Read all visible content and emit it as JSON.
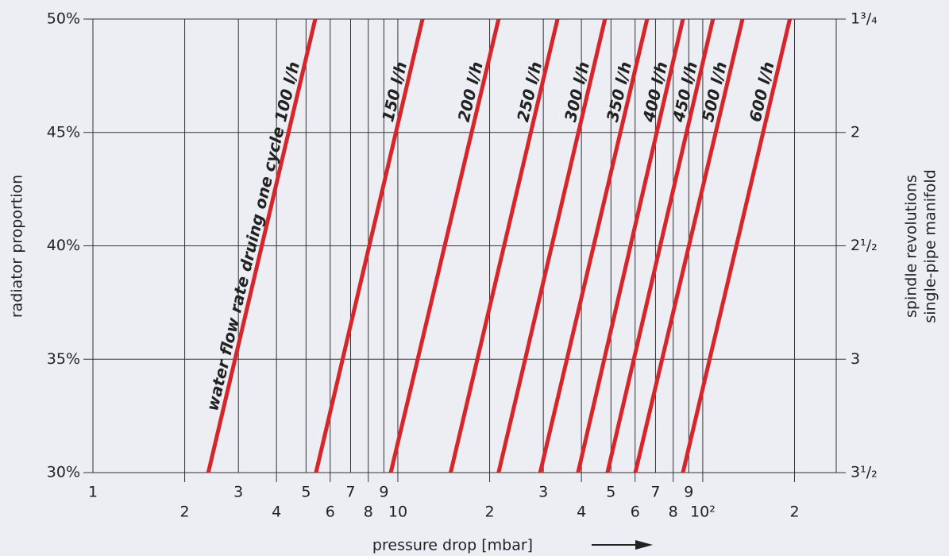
{
  "chart_data": {
    "type": "line",
    "xlabel": "pressure drop [mbar]",
    "ylabel": "radiator proportion",
    "y2label": [
      "spindle revolutions",
      "single-pipe manifold"
    ],
    "xscale": "log",
    "grid": true,
    "xlim": [
      1,
      274
    ],
    "ylim": [
      30,
      50
    ],
    "xticks": [
      1,
      2,
      3,
      4,
      5,
      6,
      7,
      8,
      9,
      10,
      {
        "value": 20,
        "label": "2"
      },
      {
        "value": 30,
        "label": "3"
      },
      {
        "value": 40,
        "label": "4"
      },
      {
        "value": 50,
        "label": "5"
      },
      {
        "value": 60,
        "label": "6"
      },
      {
        "value": 70,
        "label": "7"
      },
      {
        "value": 80,
        "label": "8"
      },
      {
        "value": 90,
        "label": "9"
      },
      {
        "value": 100,
        "label": "10²"
      },
      {
        "value": 200,
        "label": "2"
      }
    ],
    "yticks": [
      {
        "value": 30,
        "label": "30%"
      },
      {
        "value": 35,
        "label": "35%"
      },
      {
        "value": 40,
        "label": "40%"
      },
      {
        "value": 45,
        "label": "45%"
      },
      {
        "value": 50,
        "label": "50%"
      }
    ],
    "y2ticks": [
      {
        "value": 3.5,
        "label": "3¹/₂"
      },
      {
        "value": 3,
        "label": "3"
      },
      {
        "value": 2.5,
        "label": "2¹/₂"
      },
      {
        "value": 2,
        "label": "2"
      },
      {
        "value": 1.75,
        "label": "1³/₄"
      }
    ],
    "series": [
      {
        "name": "water flow rate druing one cycle 100 l/h",
        "color": "#d7262b",
        "x": [
          2.39,
          5.36
        ],
        "values": [
          30,
          50
        ]
      },
      {
        "name": "150 l/h",
        "color": "#d7262b",
        "x": [
          5.39,
          12.05
        ],
        "values": [
          30,
          50
        ]
      },
      {
        "name": "200 l/h",
        "color": "#d7262b",
        "x": [
          9.48,
          21.4
        ],
        "values": [
          30,
          50
        ]
      },
      {
        "name": "250 l/h",
        "color": "#d7262b",
        "x": [
          14.9,
          33.4
        ],
        "values": [
          30,
          50
        ]
      },
      {
        "name": "300 l/h",
        "color": "#d7262b",
        "x": [
          21.4,
          47.8
        ],
        "values": [
          30,
          50
        ]
      },
      {
        "name": "350 l/h",
        "color": "#d7262b",
        "x": [
          29.3,
          65.7
        ],
        "values": [
          30,
          50
        ]
      },
      {
        "name": "400 l/h",
        "color": "#d7262b",
        "x": [
          39.0,
          86.1
        ],
        "values": [
          30,
          50
        ]
      },
      {
        "name": "450 l/h",
        "color": "#d7262b",
        "x": [
          48.7,
          108
        ],
        "values": [
          30,
          50
        ]
      },
      {
        "name": "500 l/h",
        "color": "#d7262b",
        "x": [
          60.1,
          135
        ],
        "values": [
          30,
          50
        ]
      },
      {
        "name": "600 l/h",
        "color": "#d7262b",
        "x": [
          86.1,
          193
        ],
        "values": [
          30,
          50
        ]
      }
    ]
  }
}
